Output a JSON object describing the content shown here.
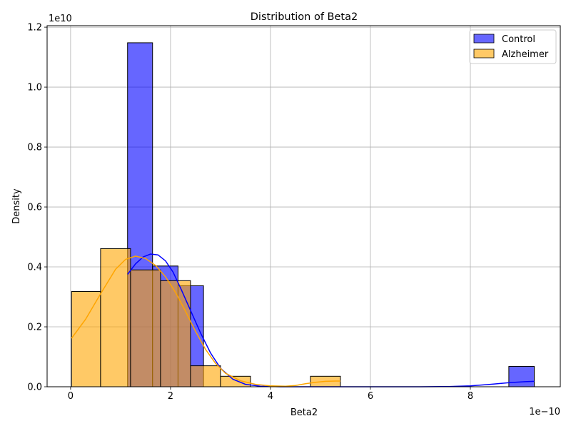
{
  "chart_data": {
    "type": "histogram",
    "title": "Distribution of Beta2",
    "xlabel": "Beta2",
    "ylabel": "Density",
    "x_offset_label": "1e−10",
    "y_offset_label": "1e10",
    "xlim": [
      -0.47,
      9.8
    ],
    "ylim": [
      0,
      1.205
    ],
    "x_ticks": [
      0,
      2,
      4,
      6,
      8
    ],
    "x_tick_labels": [
      "0",
      "2",
      "4",
      "6",
      "8"
    ],
    "y_ticks": [
      0.0,
      0.2,
      0.4,
      0.6,
      0.8,
      1.0,
      1.2
    ],
    "y_tick_labels": [
      "0.0",
      "0.2",
      "0.4",
      "0.6",
      "0.8",
      "1.0",
      "1.2"
    ],
    "grid": true,
    "legend_position": "top-right",
    "series": [
      {
        "name": "Control",
        "color": "#0000ff",
        "bar_opacity": 0.6,
        "bins": [
          {
            "x0": 1.14,
            "x1": 1.64,
            "value": 1.148
          },
          {
            "x0": 1.64,
            "x1": 2.15,
            "value": 0.403
          },
          {
            "x0": 2.15,
            "x1": 2.66,
            "value": 0.337
          },
          {
            "x0": 8.77,
            "x1": 9.28,
            "value": 0.068
          }
        ],
        "kde": [
          [
            1.14,
            0.375
          ],
          [
            1.3,
            0.41
          ],
          [
            1.45,
            0.433
          ],
          [
            1.6,
            0.443
          ],
          [
            1.75,
            0.44
          ],
          [
            1.9,
            0.42
          ],
          [
            2.05,
            0.383
          ],
          [
            2.2,
            0.33
          ],
          [
            2.4,
            0.255
          ],
          [
            2.6,
            0.18
          ],
          [
            2.8,
            0.113
          ],
          [
            3.0,
            0.062
          ],
          [
            3.25,
            0.025
          ],
          [
            3.5,
            0.008
          ],
          [
            3.8,
            0.002
          ],
          [
            4.2,
            0.0
          ],
          [
            5.0,
            0.0
          ],
          [
            6.0,
            0.0
          ],
          [
            7.0,
            0.0
          ],
          [
            7.6,
            0.001
          ],
          [
            8.0,
            0.003
          ],
          [
            8.4,
            0.008
          ],
          [
            8.8,
            0.014
          ],
          [
            9.1,
            0.017
          ],
          [
            9.28,
            0.018
          ]
        ]
      },
      {
        "name": "Alzheimer",
        "color": "#ffa500",
        "bar_opacity": 0.6,
        "bins": [
          {
            "x0": 0.02,
            "x1": 0.6,
            "value": 0.318
          },
          {
            "x0": 0.6,
            "x1": 1.2,
            "value": 0.461
          },
          {
            "x0": 1.2,
            "x1": 1.8,
            "value": 0.39
          },
          {
            "x0": 1.8,
            "x1": 2.4,
            "value": 0.354
          },
          {
            "x0": 2.4,
            "x1": 3.0,
            "value": 0.07
          },
          {
            "x0": 3.0,
            "x1": 3.6,
            "value": 0.035
          },
          {
            "x0": 4.8,
            "x1": 5.4,
            "value": 0.035
          }
        ],
        "kde": [
          [
            0.02,
            0.162
          ],
          [
            0.3,
            0.225
          ],
          [
            0.6,
            0.31
          ],
          [
            0.9,
            0.392
          ],
          [
            1.1,
            0.425
          ],
          [
            1.3,
            0.436
          ],
          [
            1.5,
            0.428
          ],
          [
            1.7,
            0.405
          ],
          [
            1.9,
            0.367
          ],
          [
            2.1,
            0.315
          ],
          [
            2.3,
            0.252
          ],
          [
            2.5,
            0.185
          ],
          [
            2.7,
            0.125
          ],
          [
            2.9,
            0.078
          ],
          [
            3.1,
            0.045
          ],
          [
            3.4,
            0.02
          ],
          [
            3.7,
            0.008
          ],
          [
            4.0,
            0.003
          ],
          [
            4.3,
            0.002
          ],
          [
            4.5,
            0.004
          ],
          [
            4.7,
            0.01
          ],
          [
            4.9,
            0.015
          ],
          [
            5.1,
            0.018
          ],
          [
            5.3,
            0.019
          ],
          [
            5.4,
            0.019
          ]
        ]
      }
    ]
  }
}
